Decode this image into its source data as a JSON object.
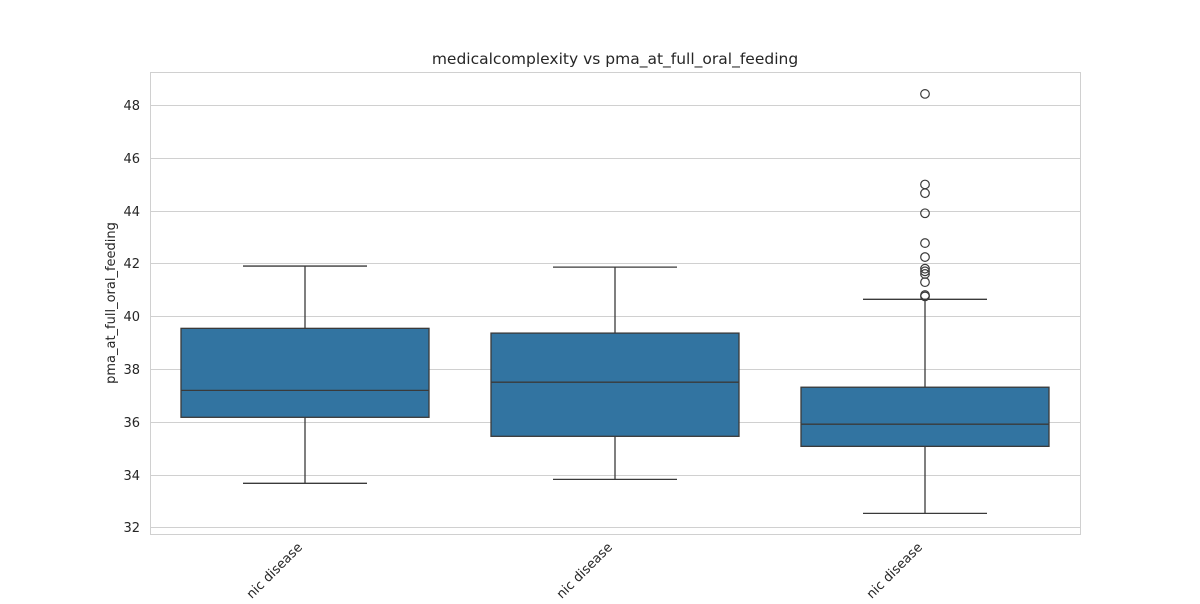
{
  "chart_data": {
    "type": "box",
    "title": "medicalcomplexity vs pma_at_full_oral_feeding",
    "xlabel": "",
    "ylabel": "pma_at_full_oral_feeding",
    "ylim": [
      31.75,
      49.25
    ],
    "yticks": [
      32,
      34,
      36,
      38,
      40,
      42,
      44,
      46,
      48
    ],
    "grid": true,
    "box_color": "#3274a1",
    "categories": [
      "nic disease",
      "nic disease",
      "nic disease"
    ],
    "boxes": [
      {
        "whisker_low": 33.67,
        "q1": 36.17,
        "median": 37.19,
        "q3": 39.54,
        "whisker_high": 41.9,
        "outliers": []
      },
      {
        "whisker_low": 33.82,
        "q1": 35.45,
        "median": 37.5,
        "q3": 39.36,
        "whisker_high": 41.86,
        "outliers": []
      },
      {
        "whisker_low": 32.53,
        "q1": 35.07,
        "median": 35.91,
        "q3": 37.31,
        "whisker_high": 40.64,
        "outliers": [
          48.42,
          44.99,
          44.66,
          43.9,
          42.77,
          42.24,
          41.8,
          41.7,
          41.6,
          41.29,
          40.8,
          40.75
        ]
      }
    ]
  }
}
